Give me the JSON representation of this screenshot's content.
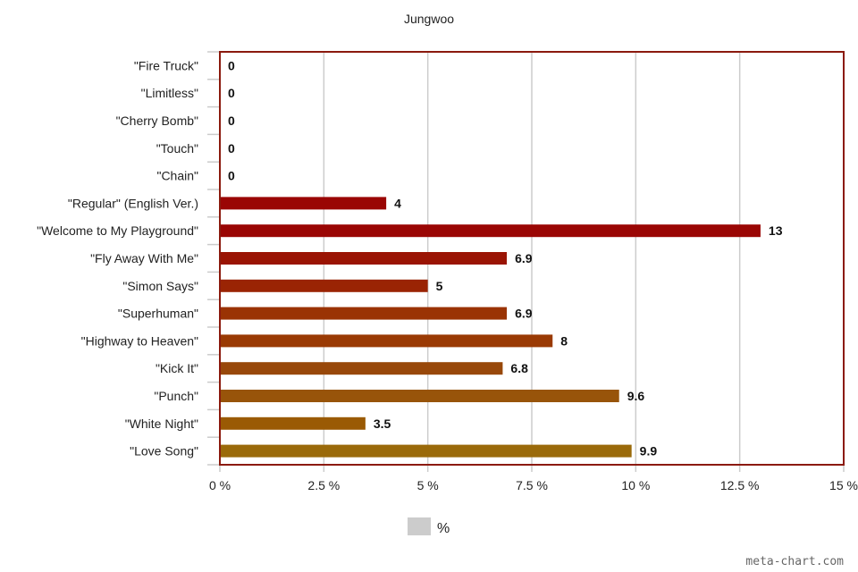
{
  "chart_data": {
    "type": "bar",
    "orientation": "horizontal",
    "title": "Jungwoo",
    "categories": [
      "\"Fire Truck\"",
      "\"Limitless\"",
      "\"Cherry Bomb\"",
      "\"Touch\"",
      "\"Chain\"",
      "\"Regular\" (English Ver.)",
      "\"Welcome to My Playground\"",
      "\"Fly Away With Me\"",
      "\"Simon Says\"",
      "\"Superhuman\"",
      "\"Highway to Heaven\"",
      "\"Kick It\"",
      "\"Punch\"",
      "\"White Night\"",
      "\"Love Song\""
    ],
    "values": [
      0,
      0,
      0,
      0,
      0,
      4,
      13,
      6.9,
      5,
      6.9,
      8,
      6.8,
      9.6,
      3.5,
      9.9
    ],
    "value_labels": [
      "0",
      "0",
      "0",
      "0",
      "0",
      "4",
      "13",
      "6.9",
      "5",
      "6.9",
      "8",
      "6.8",
      "9.6",
      "3.5",
      "9.9"
    ],
    "bar_colors": [
      "#9a0204",
      "#9a0604",
      "#9a0a04",
      "#9a0f04",
      "#9a1404",
      "#9a0604",
      "#9a0604",
      "#9a1404",
      "#9a2404",
      "#9a3304",
      "#9a3a04",
      "#98480a",
      "#98540a",
      "#9a5a04",
      "#9a6a0a"
    ],
    "xlim": [
      0,
      15
    ],
    "x_ticks": [
      0,
      2.5,
      5,
      7.5,
      10,
      12.5,
      15
    ],
    "x_tick_labels": [
      "0 %",
      "2.5 %",
      "5 %",
      "7.5 %",
      "10 %",
      "12.5 %",
      "15 %"
    ],
    "grid": true,
    "legend": {
      "label": "%",
      "position": "bottom-center",
      "swatch_color": "#cccccc"
    },
    "frame_color": "#8b1a0e",
    "grid_color": "#cccccc"
  },
  "credit": "meta-chart.com"
}
